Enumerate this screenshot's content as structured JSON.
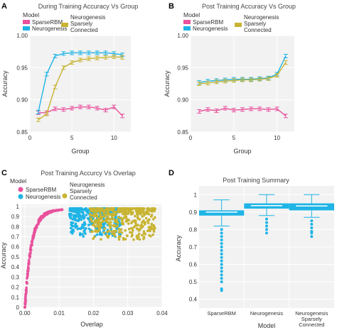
{
  "colors": {
    "SparseRBM": "#e8519c",
    "Neurogenesis": "#1eb4e6",
    "Neurogenesis Sparsely Connected": "#c8b432",
    "panel_bg": "#f2f2f2",
    "grid": "#ffffff"
  },
  "chart_data": [
    {
      "panel": "A",
      "type": "line",
      "title": "During Training Accuracy Vs Group",
      "xlabel": "Group",
      "ylabel": "Accuracy",
      "xlim": [
        0,
        12
      ],
      "ylim": [
        0.85,
        1.0
      ],
      "xticks": [
        0,
        5,
        10
      ],
      "yticks": [
        0.85,
        0.9,
        0.95,
        1.0
      ],
      "ytick_labels": [
        "0.85",
        "0.90",
        "0.95",
        "1.00"
      ],
      "legend_title": "Model",
      "legend": [
        "SparseRBM",
        "Neurogenesis",
        "Neurogenesis Sparsely Connected"
      ],
      "legend_position": "top",
      "x": [
        1,
        2,
        3,
        4,
        5,
        6,
        7,
        8,
        9,
        10,
        11
      ],
      "series": [
        {
          "name": "SparseRBM",
          "values": [
            0.88,
            0.88,
            0.886,
            0.885,
            0.887,
            0.889,
            0.889,
            0.887,
            0.884,
            0.889,
            0.875
          ]
        },
        {
          "name": "Neurogenesis",
          "values": [
            0.881,
            0.94,
            0.968,
            0.972,
            0.973,
            0.973,
            0.973,
            0.973,
            0.973,
            0.972,
            0.97
          ]
        },
        {
          "name": "Neurogenesis Sparsely Connected",
          "values": [
            0.869,
            0.878,
            0.92,
            0.95,
            0.958,
            0.962,
            0.964,
            0.965,
            0.966,
            0.967,
            0.966
          ]
        }
      ]
    },
    {
      "panel": "B",
      "type": "line",
      "title": "Post Training Accuracy Vs Group",
      "xlabel": "Group",
      "ylabel": "Accuracy",
      "xlim": [
        0,
        12
      ],
      "ylim": [
        0.85,
        1.0
      ],
      "xticks": [
        0,
        5,
        10
      ],
      "yticks": [
        0.85,
        0.9,
        0.95,
        1.0
      ],
      "ytick_labels": [
        "0.85",
        "0.90",
        "0.95",
        "1.00"
      ],
      "legend_title": "Model",
      "legend": [
        "SparseRBM",
        "Neurogenesis",
        "Neurogenesis Sparsely Connected"
      ],
      "legend_position": "top",
      "x": [
        1,
        2,
        3,
        4,
        5,
        6,
        7,
        8,
        9,
        10,
        11
      ],
      "series": [
        {
          "name": "SparseRBM",
          "values": [
            0.882,
            0.885,
            0.883,
            0.887,
            0.884,
            0.885,
            0.886,
            0.886,
            0.885,
            0.886,
            0.875
          ]
        },
        {
          "name": "Neurogenesis",
          "values": [
            0.927,
            0.929,
            0.93,
            0.931,
            0.932,
            0.932,
            0.932,
            0.933,
            0.934,
            0.94,
            0.968
          ]
        },
        {
          "name": "Neurogenesis Sparsely Connected",
          "values": [
            0.925,
            0.926,
            0.928,
            0.929,
            0.93,
            0.931,
            0.931,
            0.932,
            0.933,
            0.938,
            0.958
          ]
        }
      ]
    },
    {
      "panel": "C",
      "type": "scatter",
      "title": "Post Training Accurcy Vs Overlap",
      "xlabel": "Overlap",
      "ylabel": "Accuracy",
      "xlim": [
        -0.001,
        0.04
      ],
      "ylim": [
        0,
        1.02
      ],
      "xticks": [
        0.0,
        0.01,
        0.02,
        0.03,
        0.04
      ],
      "xtick_labels": [
        "0.00",
        "0.01",
        "0.02",
        "0.03",
        "0.04"
      ],
      "yticks": [
        0,
        0.1,
        0.2,
        0.3,
        0.4,
        0.5,
        0.6,
        0.7,
        0.8,
        0.9,
        1.0
      ],
      "ytick_labels": [
        "0",
        "0.1",
        "0.2",
        "0.3",
        "0.4",
        "0.5",
        "0.6",
        "0.7",
        "0.8",
        "0.9",
        "1"
      ],
      "legend_title": "Model",
      "legend": [
        "SparseRBM",
        "Neurogenesis",
        "Neurogenesis Sparsely Connected"
      ],
      "legend_position": "top",
      "series": [
        {
          "name": "SparseRBM",
          "overlap_range": [
            0.0,
            0.011
          ],
          "accuracy_range": [
            0.0,
            0.97
          ]
        },
        {
          "name": "Neurogenesis",
          "overlap_range": [
            0.013,
            0.028
          ],
          "accuracy_range": [
            0.7,
            0.98
          ]
        },
        {
          "name": "Neurogenesis Sparsely Connected",
          "overlap_range": [
            0.019,
            0.038
          ],
          "accuracy_range": [
            0.67,
            0.98
          ]
        }
      ]
    },
    {
      "panel": "D",
      "type": "box",
      "title": "Post Training Summary",
      "xlabel": "Model",
      "ylabel": "Accuracy",
      "ylim": [
        0.35,
        1.05
      ],
      "yticks": [
        0.4,
        0.5,
        0.6,
        0.7,
        0.8,
        0.9,
        1.0
      ],
      "ytick_labels": [
        "0.4",
        "0.5",
        "0.6",
        "0.7",
        "0.8",
        "0.9",
        "1"
      ],
      "categories": [
        "SparseRBM",
        "Neurogenesis",
        "Neurogenesis Sparsely Connected"
      ],
      "boxes": [
        {
          "name": "SparseRBM",
          "min": 0.82,
          "q1": 0.88,
          "median": 0.9,
          "q3": 0.91,
          "max": 0.97,
          "outliers": [
            0.8,
            0.78,
            0.76,
            0.74,
            0.72,
            0.7,
            0.68,
            0.66,
            0.64,
            0.62,
            0.6,
            0.58,
            0.56,
            0.54,
            0.52,
            0.5,
            0.46,
            0.45
          ]
        },
        {
          "name": "Neurogenesis",
          "min": 0.88,
          "q1": 0.92,
          "median": 0.937,
          "q3": 0.95,
          "max": 1.0,
          "outliers": [
            0.86,
            0.84,
            0.82,
            0.8,
            0.78
          ]
        },
        {
          "name": "Neurogenesis Sparsely Connected",
          "min": 0.87,
          "q1": 0.91,
          "median": 0.935,
          "q3": 0.95,
          "max": 1.0,
          "outliers": [
            0.85,
            0.83,
            0.81,
            0.79,
            0.78,
            0.76
          ]
        }
      ]
    }
  ],
  "panels": {
    "A": {
      "label": "A",
      "title": "During Training Accuracy Vs Group",
      "ylabel": "Accuracy",
      "xlabel": "Group",
      "legend_title": "Model"
    },
    "B": {
      "label": "B",
      "title": "Post Training Accuracy Vs Group",
      "ylabel": "Accuracy",
      "xlabel": "Group",
      "legend_title": "Model"
    },
    "C": {
      "label": "C",
      "title": "Post Training Accurcy Vs Overlap",
      "ylabel": "Accuracy",
      "xlabel": "Overlap",
      "legend_title": "Model"
    },
    "D": {
      "label": "D",
      "title": "Post Training Summary",
      "ylabel": "Accuracy",
      "xlabel": "Model"
    }
  },
  "legend_labels": {
    "sparse": "SparseRBM",
    "neuro": "Neurogenesis",
    "nsc_line1": "Neurogenesis",
    "nsc_line2": "Sparsely",
    "nsc_line3": "Connected"
  },
  "d_category_lines": {
    "c1": [
      "SparseRBM"
    ],
    "c2": [
      "Neurogenesis"
    ],
    "c3": [
      "Neurogenesis",
      "Sparsely",
      "Connected"
    ]
  }
}
